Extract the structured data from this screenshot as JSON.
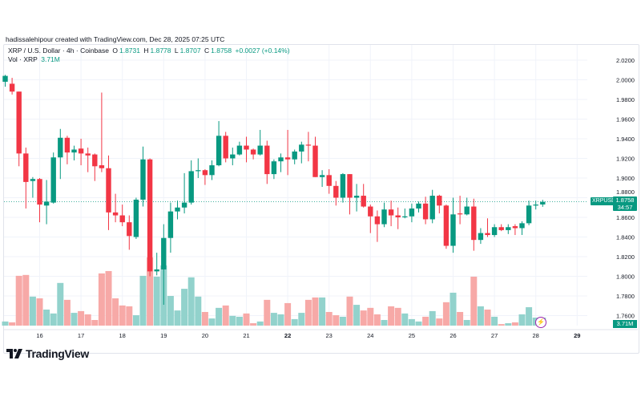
{
  "credit": "hadissalehipour created with TradingView.com, Dec 28, 2025 07:25 UTC",
  "legend": {
    "symbol": "XRP / U.S. Dollar · 4h · Coinbase",
    "o_label": "O",
    "o": "1.8731",
    "h_label": "H",
    "h": "1.8778",
    "l_label": "L",
    "l": "1.8707",
    "c_label": "C",
    "c": "1.8758",
    "change": "+0.0027 (+0.14%)",
    "vol_label": "Vol · XRP",
    "vol": "3.71M"
  },
  "price_tag": {
    "symbol": "XRPUSD",
    "price": "1.8758",
    "countdown": "34:57"
  },
  "volume_tag": "3.71M",
  "logo_text": "TradingView",
  "colors": {
    "up": "#089981",
    "down": "#f23645",
    "up_volume": "#92d2cc",
    "down_volume": "#f7a9a7",
    "grid": "#f0f3fa",
    "indicator_icon": "#9c27b0"
  },
  "chart_data": {
    "type": "candlestick",
    "interval": "4h",
    "ylim": [
      1.75,
      2.03
    ],
    "y_ticks": [
      "2.0200",
      "2.0000",
      "1.9800",
      "1.9600",
      "1.9400",
      "1.9200",
      "1.9000",
      "1.8800",
      "1.8600",
      "1.8400",
      "1.8200",
      "1.8000",
      "1.7800",
      "1.7600"
    ],
    "x_ticks": [
      {
        "label": "16",
        "bold": false
      },
      {
        "label": "17",
        "bold": false
      },
      {
        "label": "18",
        "bold": false
      },
      {
        "label": "19",
        "bold": false
      },
      {
        "label": "20",
        "bold": false
      },
      {
        "label": "21",
        "bold": false
      },
      {
        "label": "22",
        "bold": true
      },
      {
        "label": "23",
        "bold": false
      },
      {
        "label": "24",
        "bold": false
      },
      {
        "label": "25",
        "bold": false
      },
      {
        "label": "26",
        "bold": false
      },
      {
        "label": "27",
        "bold": false
      },
      {
        "label": "28",
        "bold": false
      },
      {
        "label": "29",
        "bold": true
      }
    ],
    "grid": true,
    "last_price": 1.8758,
    "ohlc": [
      [
        1.998,
        2.005,
        1.993,
        2.004
      ],
      [
        1.996,
        2.002,
        1.985,
        1.988
      ],
      [
        1.988,
        1.988,
        1.912,
        1.925
      ],
      [
        1.925,
        1.931,
        1.869,
        1.896
      ],
      [
        1.897,
        1.901,
        1.88,
        1.899
      ],
      [
        1.899,
        1.9,
        1.855,
        1.873
      ],
      [
        1.872,
        1.898,
        1.853,
        1.876
      ],
      [
        1.875,
        1.926,
        1.874,
        1.921
      ],
      [
        1.921,
        1.95,
        1.899,
        1.941
      ],
      [
        1.941,
        1.943,
        1.914,
        1.926
      ],
      [
        1.926,
        1.933,
        1.918,
        1.929
      ],
      [
        1.93,
        1.94,
        1.913,
        1.925
      ],
      [
        1.925,
        1.931,
        1.906,
        1.923
      ],
      [
        1.924,
        1.925,
        1.897,
        1.912
      ],
      [
        1.913,
        1.987,
        1.906,
        1.91
      ],
      [
        1.91,
        1.923,
        1.847,
        1.865
      ],
      [
        1.865,
        1.884,
        1.855,
        1.862
      ],
      [
        1.862,
        1.873,
        1.851,
        1.855
      ],
      [
        1.855,
        1.862,
        1.827,
        1.841
      ],
      [
        1.84,
        1.88,
        1.838,
        1.878
      ],
      [
        1.878,
        1.932,
        1.871,
        1.919
      ],
      [
        1.919,
        1.92,
        1.8,
        1.805
      ],
      [
        1.805,
        1.824,
        1.801,
        1.807
      ],
      [
        1.807,
        1.853,
        1.771,
        1.839
      ],
      [
        1.839,
        1.875,
        1.824,
        1.866
      ],
      [
        1.866,
        1.877,
        1.858,
        1.87
      ],
      [
        1.87,
        1.905,
        1.864,
        1.875
      ],
      [
        1.875,
        1.918,
        1.873,
        1.907
      ],
      [
        1.907,
        1.92,
        1.9,
        1.908
      ],
      [
        1.908,
        1.909,
        1.893,
        1.903
      ],
      [
        1.903,
        1.918,
        1.898,
        1.913
      ],
      [
        1.913,
        1.958,
        1.912,
        1.943
      ],
      [
        1.943,
        1.947,
        1.916,
        1.92
      ],
      [
        1.92,
        1.931,
        1.913,
        1.924
      ],
      [
        1.924,
        1.937,
        1.923,
        1.933
      ],
      [
        1.933,
        1.942,
        1.916,
        1.929
      ],
      [
        1.929,
        1.93,
        1.919,
        1.924
      ],
      [
        1.924,
        1.949,
        1.923,
        1.933
      ],
      [
        1.933,
        1.938,
        1.894,
        1.904
      ],
      [
        1.904,
        1.919,
        1.899,
        1.917
      ],
      [
        1.917,
        1.925,
        1.906,
        1.921
      ],
      [
        1.921,
        1.949,
        1.903,
        1.919
      ],
      [
        1.919,
        1.929,
        1.914,
        1.927
      ],
      [
        1.927,
        1.937,
        1.915,
        1.934
      ],
      [
        1.934,
        1.947,
        1.917,
        1.933
      ],
      [
        1.933,
        1.942,
        1.901,
        1.901
      ],
      [
        1.901,
        1.908,
        1.891,
        1.903
      ],
      [
        1.903,
        1.909,
        1.884,
        1.892
      ],
      [
        1.892,
        1.897,
        1.872,
        1.88
      ],
      [
        1.88,
        1.905,
        1.875,
        1.904
      ],
      [
        1.904,
        1.904,
        1.863,
        1.88
      ],
      [
        1.88,
        1.894,
        1.866,
        1.882
      ],
      [
        1.882,
        1.894,
        1.87,
        1.871
      ],
      [
        1.871,
        1.873,
        1.844,
        1.861
      ],
      [
        1.861,
        1.867,
        1.835,
        1.853
      ],
      [
        1.853,
        1.875,
        1.85,
        1.868
      ],
      [
        1.868,
        1.877,
        1.851,
        1.862
      ],
      [
        1.862,
        1.87,
        1.848,
        1.86
      ],
      [
        1.86,
        1.869,
        1.859,
        1.861
      ],
      [
        1.861,
        1.874,
        1.855,
        1.869
      ],
      [
        1.869,
        1.876,
        1.865,
        1.874
      ],
      [
        1.874,
        1.881,
        1.853,
        1.858
      ],
      [
        1.858,
        1.888,
        1.854,
        1.882
      ],
      [
        1.882,
        1.883,
        1.864,
        1.872
      ],
      [
        1.872,
        1.873,
        1.828,
        1.831
      ],
      [
        1.831,
        1.88,
        1.824,
        1.863
      ],
      [
        1.864,
        1.882,
        1.853,
        1.863
      ],
      [
        1.863,
        1.88,
        1.862,
        1.871
      ],
      [
        1.871,
        1.879,
        1.826,
        1.837
      ],
      [
        1.837,
        1.849,
        1.833,
        1.844
      ],
      [
        1.844,
        1.859,
        1.84,
        1.842
      ],
      [
        1.842,
        1.853,
        1.84,
        1.85
      ],
      [
        1.85,
        1.853,
        1.846,
        1.847
      ],
      [
        1.847,
        1.853,
        1.843,
        1.85
      ],
      [
        1.851,
        1.853,
        1.842,
        1.849
      ],
      [
        1.849,
        1.856,
        1.842,
        1.854
      ],
      [
        1.854,
        1.877,
        1.852,
        1.872
      ],
      [
        1.872,
        1.877,
        1.868,
        1.873
      ],
      [
        1.8731,
        1.8778,
        1.8707,
        1.8758
      ]
    ],
    "volume_millions": [
      1.9,
      1.5,
      23,
      23.4,
      13.4,
      12.6,
      7.4,
      5.6,
      19.7,
      11.9,
      5.9,
      6.7,
      5.2,
      2.6,
      24.1,
      25.2,
      12.6,
      9.3,
      8.9,
      4.8,
      23,
      31.5,
      22.6,
      27.8,
      13.7,
      7,
      17,
      22.3,
      13.4,
      6.3,
      3.3,
      8.2,
      9.3,
      4.5,
      4.1,
      5.6,
      1.1,
      1.9,
      11.9,
      5.9,
      5.2,
      10.4,
      3,
      5.9,
      11.9,
      13,
      13,
      6.3,
      4.8,
      4.1,
      13.4,
      9.6,
      7,
      8.2,
      5.2,
      2.6,
      8.9,
      8.2,
      5.6,
      3,
      1.9,
      4.1,
      6.7,
      3.3,
      10.8,
      15.2,
      6.3,
      2.6,
      22.6,
      8.9,
      7.4,
      4.1,
      0.7,
      1.1,
      1.5,
      5.2,
      8.5,
      3.7,
      3.71
    ]
  }
}
